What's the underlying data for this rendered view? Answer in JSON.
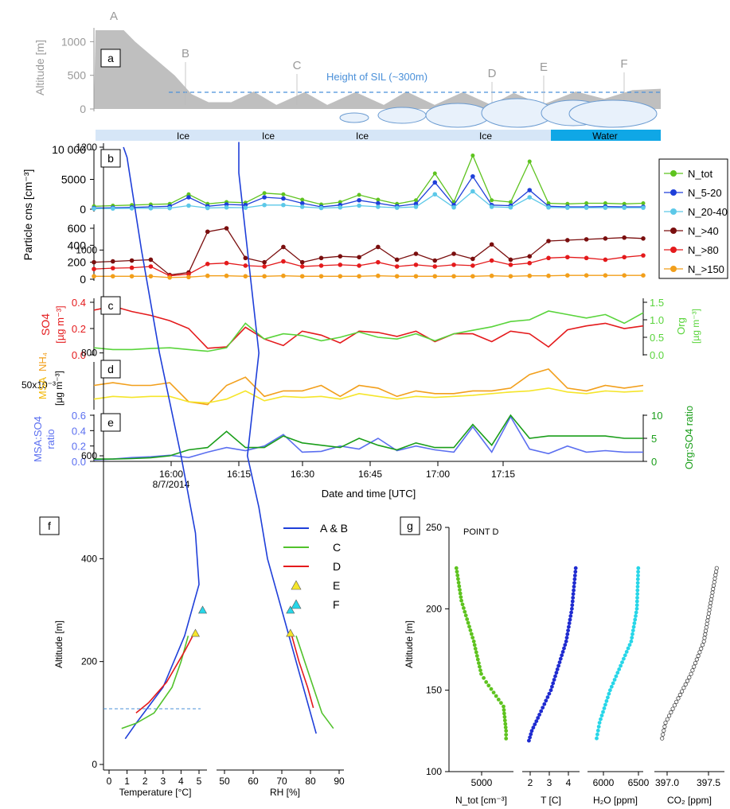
{
  "figure": {
    "panel_labels": [
      "a",
      "b",
      "c",
      "d",
      "e",
      "f",
      "g"
    ]
  },
  "chart_data": [
    {
      "panel": "a",
      "type": "area",
      "ylabel": "Altitude [m]",
      "yticks": [
        "0",
        "500",
        "1000"
      ],
      "ylim": [
        0,
        1300
      ],
      "point_labels": [
        "A",
        "B",
        "C",
        "D",
        "E",
        "F"
      ],
      "annotation": "Height of SIL (~300m)",
      "sil_height_m": 300,
      "surface_labels": [
        "Ice",
        "Ice",
        "Ice",
        "Ice",
        "Water"
      ],
      "altitude_profile": [
        [
          0,
          1170
        ],
        [
          0.05,
          1170
        ],
        [
          0.07,
          1000
        ],
        [
          0.14,
          500
        ],
        [
          0.17,
          220
        ],
        [
          0.2,
          100
        ],
        [
          0.24,
          100
        ],
        [
          0.28,
          260
        ],
        [
          0.32,
          60
        ],
        [
          0.37,
          250
        ],
        [
          0.41,
          60
        ],
        [
          0.46,
          250
        ],
        [
          0.51,
          60
        ],
        [
          0.55,
          260
        ],
        [
          0.6,
          60
        ],
        [
          0.65,
          250
        ],
        [
          0.7,
          60
        ],
        [
          0.74,
          240
        ],
        [
          0.79,
          60
        ],
        [
          0.85,
          260
        ],
        [
          0.9,
          150
        ],
        [
          0.95,
          280
        ],
        [
          1,
          300
        ]
      ]
    },
    {
      "panel": "b",
      "type": "line",
      "ylabel": "Particle cns [cm⁻³]",
      "upper_yticks": [
        "0",
        "5000",
        "10 000"
      ],
      "lower_yticks": [
        "0",
        "200",
        "400",
        "600"
      ],
      "legend": [
        "N_tot",
        "N_5-20",
        "N_20-40",
        "N_>40",
        "N_>80",
        "N_>150"
      ],
      "series": [
        {
          "name": "N_tot",
          "color": "#5ec31f",
          "values": [
            500,
            600,
            700,
            800,
            900,
            2500,
            900,
            1200,
            1100,
            2700,
            2500,
            1600,
            800,
            1200,
            2400,
            1600,
            900,
            1500,
            6000,
            1200,
            9000,
            1500,
            1200,
            8000,
            1000,
            900,
            1000,
            1000,
            900,
            1000
          ]
        },
        {
          "name": "N_5-20",
          "color": "#1f3fd9",
          "values": [
            200,
            250,
            300,
            400,
            500,
            2000,
            500,
            800,
            700,
            2000,
            1800,
            1000,
            400,
            700,
            1500,
            1000,
            500,
            900,
            4500,
            700,
            5500,
            700,
            600,
            3200,
            500,
            400,
            400,
            450,
            400,
            400
          ]
        },
        {
          "name": "N_20-40",
          "color": "#5cc8e8",
          "values": [
            100,
            120,
            140,
            160,
            180,
            600,
            200,
            300,
            250,
            700,
            700,
            400,
            200,
            300,
            600,
            400,
            250,
            400,
            2500,
            300,
            3000,
            400,
            300,
            2000,
            300,
            250,
            250,
            250,
            250,
            250
          ]
        },
        {
          "name": "N_>40",
          "color": "#7a0e0e",
          "values": [
            200,
            210,
            220,
            230,
            50,
            80,
            560,
            600,
            250,
            200,
            380,
            200,
            250,
            270,
            260,
            380,
            230,
            300,
            220,
            300,
            240,
            410,
            230,
            270,
            450,
            460,
            470,
            480,
            490,
            480
          ]
        },
        {
          "name": "N_>80",
          "color": "#e41a1c",
          "values": [
            120,
            130,
            135,
            150,
            40,
            60,
            180,
            190,
            160,
            150,
            210,
            150,
            160,
            170,
            160,
            200,
            150,
            170,
            150,
            170,
            160,
            220,
            170,
            190,
            250,
            260,
            250,
            230,
            260,
            280
          ]
        },
        {
          "name": "N_>150",
          "color": "#f29f1b",
          "values": [
            35,
            35,
            35,
            35,
            20,
            25,
            40,
            40,
            35,
            35,
            40,
            35,
            35,
            35,
            35,
            40,
            35,
            35,
            35,
            35,
            35,
            40,
            35,
            40,
            40,
            45,
            45,
            45,
            45,
            45
          ]
        }
      ]
    },
    {
      "panel": "c",
      "type": "line",
      "left_label": "SO4",
      "left_unit": "[µg m⁻³]",
      "left_yticks": [
        "0.0",
        "0.2",
        "0.4"
      ],
      "right_label": "Org",
      "right_unit": "[µg m⁻³]",
      "right_yticks": [
        "0.0",
        "0.5",
        "1.0",
        "1.5"
      ],
      "series": [
        {
          "name": "SO4",
          "color": "#e41a1c",
          "axis": "left",
          "values": [
            0.34,
            0.37,
            0.33,
            0.3,
            0.26,
            0.2,
            0.05,
            0.06,
            0.21,
            0.12,
            0.07,
            0.18,
            0.15,
            0.09,
            0.18,
            0.17,
            0.14,
            0.18,
            0.1,
            0.16,
            0.16,
            0.1,
            0.18,
            0.16,
            0.06,
            0.19,
            0.22,
            0.24,
            0.2,
            0.22
          ]
        },
        {
          "name": "Org",
          "color": "#59d43b",
          "axis": "right",
          "values": [
            0.2,
            0.15,
            0.15,
            0.18,
            0.2,
            0.15,
            0.1,
            0.2,
            0.9,
            0.45,
            0.6,
            0.55,
            0.4,
            0.5,
            0.65,
            0.5,
            0.45,
            0.6,
            0.4,
            0.6,
            0.7,
            0.8,
            0.95,
            1.0,
            1.25,
            1.15,
            1.05,
            1.15,
            0.9,
            1.2
          ]
        }
      ]
    },
    {
      "panel": "d",
      "type": "line",
      "left_label_parts": [
        "MSA",
        "NH₄"
      ],
      "left_unit": "[µg m⁻³]",
      "ytick": "50x10⁻³",
      "series": [
        {
          "name": "NH4",
          "color": "#f29f1b",
          "values": [
            0.04,
            0.045,
            0.04,
            0.04,
            0.045,
            0.01,
            0.005,
            0.04,
            0.055,
            0.02,
            0.03,
            0.03,
            0.04,
            0.02,
            0.04,
            0.035,
            0.02,
            0.03,
            0.025,
            0.025,
            0.03,
            0.03,
            0.035,
            0.06,
            0.07,
            0.035,
            0.03,
            0.04,
            0.035,
            0.04
          ]
        },
        {
          "name": "MSA",
          "color": "#f5e52a",
          "values": [
            0.015,
            0.02,
            0.018,
            0.02,
            0.02,
            0.01,
            0.008,
            0.015,
            0.03,
            0.012,
            0.02,
            0.018,
            0.02,
            0.015,
            0.025,
            0.02,
            0.015,
            0.02,
            0.018,
            0.02,
            0.022,
            0.025,
            0.028,
            0.03,
            0.035,
            0.028,
            0.025,
            0.03,
            0.028,
            0.03
          ]
        }
      ]
    },
    {
      "panel": "e",
      "type": "line",
      "left_label_lines": [
        "MSA:SO4",
        "ratio"
      ],
      "left_yticks": [
        "0.0",
        "0.2",
        "0.4",
        "0.6"
      ],
      "right_label": "Org:SO4 ratio",
      "right_yticks": [
        "0",
        "5",
        "10"
      ],
      "xlabel": "Date and time [UTC]",
      "xticks": [
        "16:00",
        "16:15",
        "16:30",
        "16:45",
        "17:00",
        "17:15"
      ],
      "date_label": "8/7/2014",
      "series": [
        {
          "name": "MSA:SO4",
          "color": "#5b6ff0",
          "axis": "left",
          "values": [
            0.02,
            0.03,
            0.05,
            0.06,
            0.08,
            0.05,
            0.12,
            0.18,
            0.14,
            0.2,
            0.35,
            0.12,
            0.13,
            0.2,
            0.16,
            0.3,
            0.14,
            0.2,
            0.15,
            0.12,
            0.45,
            0.12,
            0.58,
            0.16,
            0.1,
            0.2,
            0.12,
            0.14,
            0.12,
            0.12
          ]
        },
        {
          "name": "Org:SO4",
          "color": "#1a9e1a",
          "axis": "right",
          "values": [
            0.5,
            0.5,
            0.6,
            0.8,
            1.2,
            2.5,
            3.0,
            6.5,
            3.0,
            3.0,
            5.5,
            4.0,
            3.5,
            3.0,
            5.0,
            3.5,
            2.5,
            4.0,
            3.0,
            3.0,
            8.0,
            3.5,
            10.0,
            5.0,
            5.5,
            5.5,
            5.5,
            5.5,
            5.0,
            5.0
          ]
        }
      ]
    },
    {
      "panel": "f",
      "type": "line",
      "ylabel": "Altitude [m]",
      "yticks": [
        "0",
        "200",
        "400",
        "600",
        "800",
        "1000",
        "1200"
      ],
      "temp_xlabel": "Temperature [°C]",
      "temp_xticks": [
        "0",
        "1",
        "2",
        "3",
        "4",
        "5"
      ],
      "rh_xlabel": "RH [%]",
      "rh_xticks": [
        "50",
        "60",
        "70",
        "80",
        "90"
      ],
      "legend": [
        "A & B",
        "C",
        "D",
        "E",
        "F"
      ],
      "series": [
        {
          "name": "A & B",
          "color": "#1f3fd9",
          "temp": [
            [
              0.8,
              1200
            ],
            [
              1.0,
              1180
            ],
            [
              1.8,
              1000
            ],
            [
              2.8,
              800
            ],
            [
              4.0,
              600
            ],
            [
              4.8,
              450
            ],
            [
              5.0,
              350
            ],
            [
              4.2,
              250
            ],
            [
              3.0,
              150
            ],
            [
              1.5,
              80
            ],
            [
              0.9,
              50
            ]
          ],
          "rh": [
            [
              55,
              1210
            ],
            [
              55,
              1150
            ],
            [
              58,
              1000
            ],
            [
              60,
              900
            ],
            [
              62,
              800
            ],
            [
              60,
              700
            ],
            [
              58,
              600
            ],
            [
              62,
              500
            ],
            [
              65,
              400
            ],
            [
              70,
              300
            ],
            [
              75,
              200
            ],
            [
              80,
              100
            ],
            [
              82,
              60
            ]
          ]
        },
        {
          "name": "C",
          "color": "#52c22c",
          "temp": [
            [
              4.4,
              250
            ],
            [
              4.0,
              200
            ],
            [
              3.5,
              150
            ],
            [
              2.5,
              100
            ],
            [
              1.5,
              80
            ],
            [
              0.7,
              70
            ]
          ],
          "rh": [
            [
              75,
              250
            ],
            [
              78,
              200
            ],
            [
              81,
              150
            ],
            [
              84,
              100
            ],
            [
              88,
              70
            ]
          ]
        },
        {
          "name": "D",
          "color": "#e41a1c",
          "temp": [
            [
              4.8,
              260
            ],
            [
              4.2,
              220
            ],
            [
              3.2,
              160
            ],
            [
              2.2,
              120
            ],
            [
              1.5,
              100
            ]
          ],
          "rh": [
            [
              73,
              260
            ],
            [
              76,
              200
            ],
            [
              79,
              150
            ],
            [
              81,
              110
            ]
          ]
        }
      ],
      "markers": [
        {
          "name": "E",
          "color": "#f5e52a",
          "temp": 4.8,
          "rh": 73,
          "alt": 255
        },
        {
          "name": "F",
          "color": "#27d6e8",
          "temp": 5.2,
          "rh": 73,
          "alt": 300
        }
      ]
    },
    {
      "panel": "g",
      "type": "scatter",
      "title": "POINT D",
      "ylabel": "Altitude [m]",
      "yticks": [
        "100",
        "150",
        "200",
        "250"
      ],
      "ylim": [
        100,
        250
      ],
      "subplots": [
        {
          "name": "N_tot",
          "color": "#5ec31f",
          "xlabel": "N_tot [cm⁻³]",
          "xticks": [
            "5000"
          ],
          "points": [
            [
              4000,
              225
            ],
            [
              4200,
              205
            ],
            [
              4700,
              180
            ],
            [
              5000,
              160
            ],
            [
              5200,
              155
            ],
            [
              5900,
              140
            ],
            [
              6000,
              125
            ],
            [
              6000,
              118
            ]
          ]
        },
        {
          "name": "T",
          "color": "#1f2bd0",
          "xlabel": "T [C]",
          "xticks": [
            "2",
            "3",
            "4"
          ],
          "points": [
            [
              4.5,
              225
            ],
            [
              4.3,
              200
            ],
            [
              4.0,
              180
            ],
            [
              3.2,
              150
            ],
            [
              2.6,
              135
            ],
            [
              2.2,
              125
            ],
            [
              2.0,
              117
            ]
          ]
        },
        {
          "name": "H2O",
          "color": "#27d6e8",
          "xlabel": "H₂O [ppm]",
          "xticks": [
            "6000",
            "6500"
          ],
          "points": [
            [
              6500,
              225
            ],
            [
              6480,
              200
            ],
            [
              6400,
              180
            ],
            [
              6100,
              150
            ],
            [
              5950,
              130
            ],
            [
              5900,
              118
            ]
          ]
        },
        {
          "name": "CO2",
          "color": "#444444",
          "xlabel": "CO₂ [ppm]",
          "xticks": [
            "397.0",
            "397.5"
          ],
          "points": [
            [
              397.65,
              225
            ],
            [
              397.6,
              210
            ],
            [
              397.5,
              180
            ],
            [
              397.35,
              160
            ],
            [
              397.2,
              145
            ],
            [
              397.05,
              130
            ],
            [
              397.0,
              118
            ]
          ]
        }
      ]
    }
  ]
}
